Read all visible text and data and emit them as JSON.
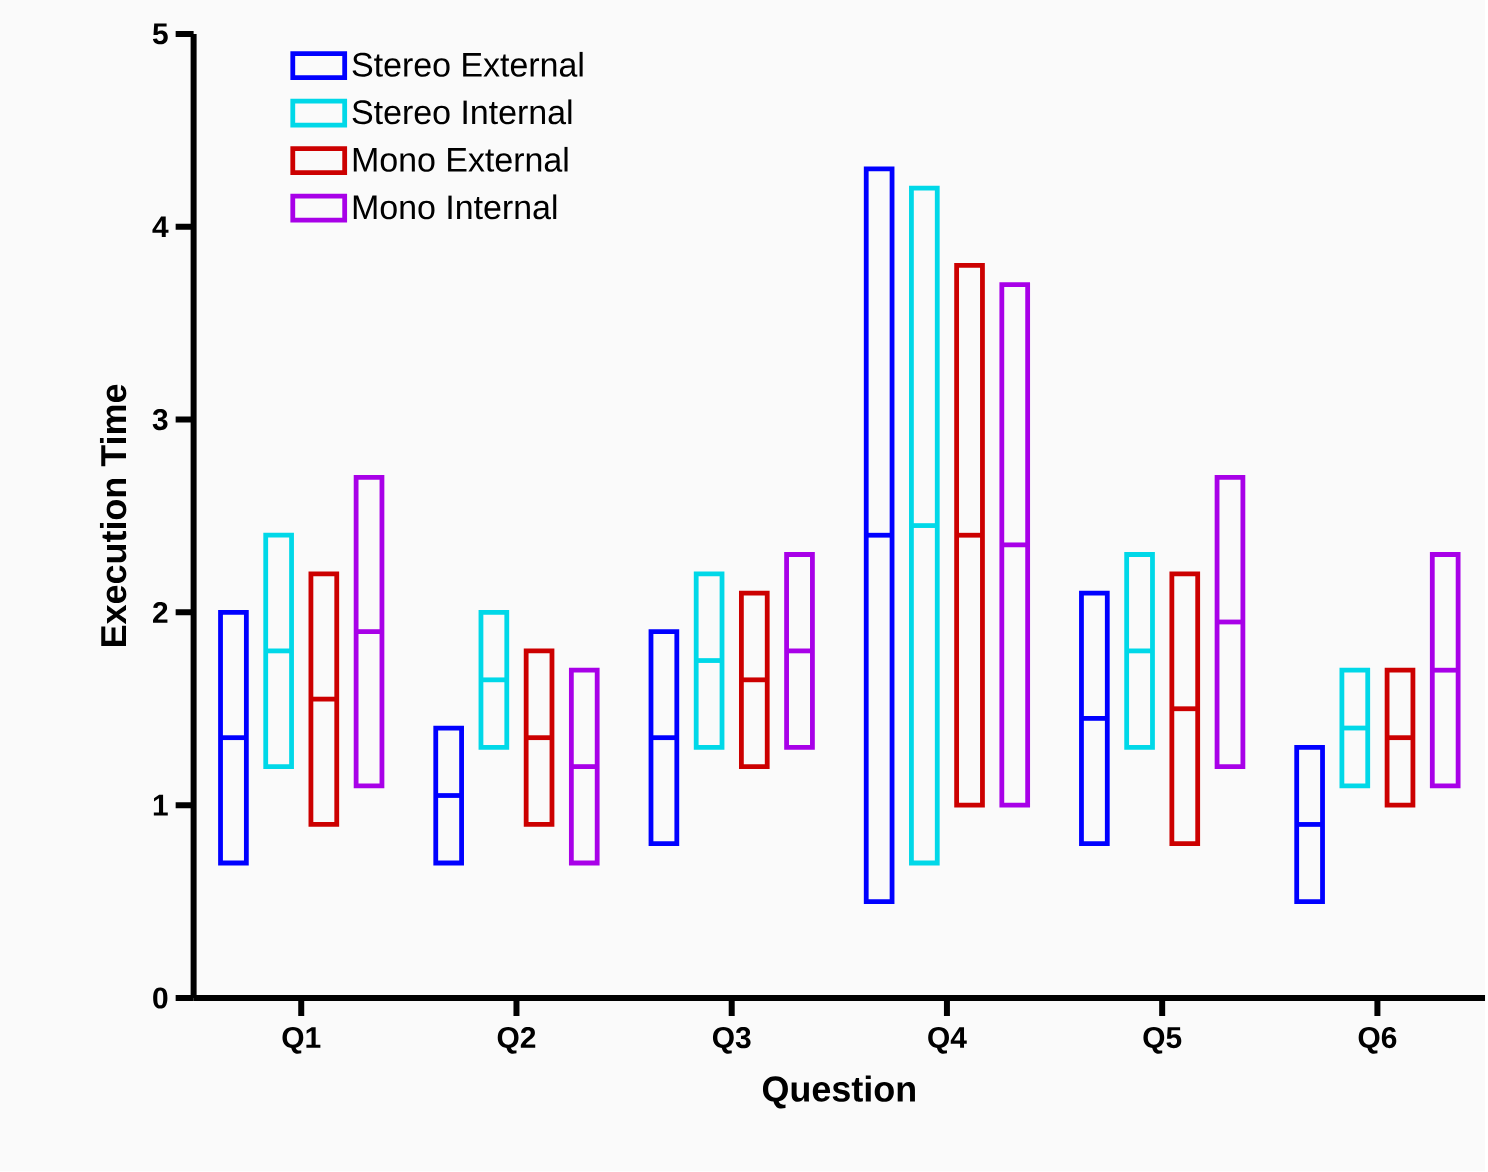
{
  "chart_data": {
    "type": "box",
    "xlabel": "Question",
    "ylabel": "Execution Time",
    "categories": [
      "Q1",
      "Q2",
      "Q3",
      "Q4",
      "Q5",
      "Q6"
    ],
    "ylim": [
      0,
      5
    ],
    "yticks": [
      0,
      1,
      2,
      3,
      4,
      5
    ],
    "legend": "top left",
    "grid": false,
    "series": [
      {
        "name": "Stereo External",
        "color": "#0000ff",
        "boxes": [
          {
            "low": 0.7,
            "q1": 0.7,
            "median": 1.35,
            "q3": 2.0,
            "high": 2.0
          },
          {
            "low": 0.7,
            "q1": 0.7,
            "median": 1.05,
            "q3": 1.4,
            "high": 1.4
          },
          {
            "low": 0.8,
            "q1": 0.8,
            "median": 1.35,
            "q3": 1.9,
            "high": 1.9
          },
          {
            "low": 0.5,
            "q1": 0.5,
            "median": 2.4,
            "q3": 4.3,
            "high": 4.3
          },
          {
            "low": 0.8,
            "q1": 0.8,
            "median": 1.45,
            "q3": 2.1,
            "high": 2.1
          },
          {
            "low": 0.5,
            "q1": 0.5,
            "median": 0.9,
            "q3": 1.3,
            "high": 1.3
          }
        ]
      },
      {
        "name": "Stereo Internal",
        "color": "#00d8e8",
        "boxes": [
          {
            "low": 1.2,
            "q1": 1.2,
            "median": 1.8,
            "q3": 2.4,
            "high": 2.4
          },
          {
            "low": 1.3,
            "q1": 1.3,
            "median": 1.65,
            "q3": 2.0,
            "high": 2.0
          },
          {
            "low": 1.3,
            "q1": 1.3,
            "median": 1.75,
            "q3": 2.2,
            "high": 2.2
          },
          {
            "low": 0.7,
            "q1": 0.7,
            "median": 2.45,
            "q3": 4.2,
            "high": 4.2
          },
          {
            "low": 1.3,
            "q1": 1.3,
            "median": 1.8,
            "q3": 2.3,
            "high": 2.3
          },
          {
            "low": 1.1,
            "q1": 1.1,
            "median": 1.4,
            "q3": 1.7,
            "high": 1.7
          }
        ]
      },
      {
        "name": "Mono External",
        "color": "#cc0000",
        "boxes": [
          {
            "low": 0.9,
            "q1": 0.9,
            "median": 1.55,
            "q3": 2.2,
            "high": 2.2
          },
          {
            "low": 0.9,
            "q1": 0.9,
            "median": 1.35,
            "q3": 1.8,
            "high": 1.8
          },
          {
            "low": 1.2,
            "q1": 1.2,
            "median": 1.65,
            "q3": 2.1,
            "high": 2.1
          },
          {
            "low": 1.0,
            "q1": 1.0,
            "median": 2.4,
            "q3": 3.8,
            "high": 3.8
          },
          {
            "low": 0.8,
            "q1": 0.8,
            "median": 1.5,
            "q3": 2.2,
            "high": 2.2
          },
          {
            "low": 1.0,
            "q1": 1.0,
            "median": 1.35,
            "q3": 1.7,
            "high": 1.7
          }
        ]
      },
      {
        "name": "Mono Internal",
        "color": "#a800e8",
        "boxes": [
          {
            "low": 1.1,
            "q1": 1.1,
            "median": 1.9,
            "q3": 2.7,
            "high": 2.7
          },
          {
            "low": 0.7,
            "q1": 0.7,
            "median": 1.2,
            "q3": 1.7,
            "high": 1.7
          },
          {
            "low": 1.3,
            "q1": 1.3,
            "median": 1.8,
            "q3": 2.3,
            "high": 2.3
          },
          {
            "low": 1.0,
            "q1": 1.0,
            "median": 2.35,
            "q3": 3.7,
            "high": 3.7
          },
          {
            "low": 1.2,
            "q1": 1.2,
            "median": 1.95,
            "q3": 2.7,
            "high": 2.7
          },
          {
            "low": 1.1,
            "q1": 1.1,
            "median": 1.7,
            "q3": 2.3,
            "high": 2.3
          }
        ]
      }
    ]
  }
}
